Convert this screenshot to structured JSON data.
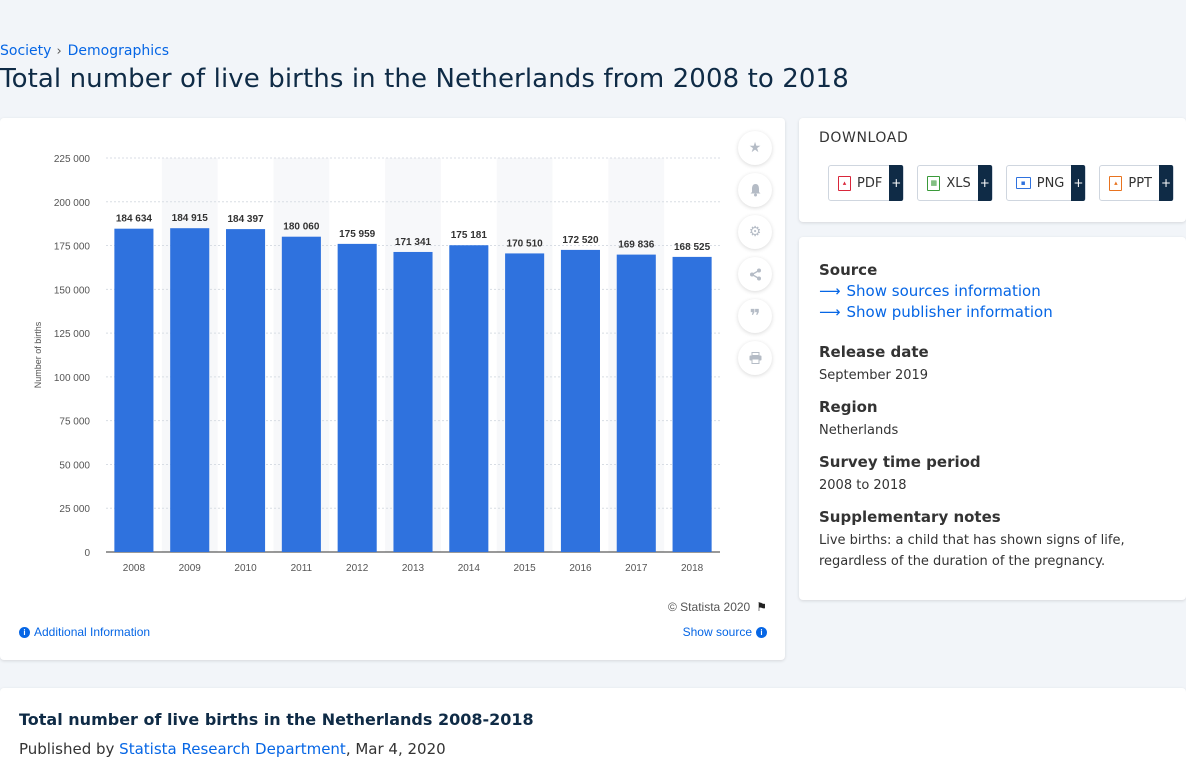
{
  "breadcrumb": {
    "item1": "Society",
    "item2": "Demographics"
  },
  "page_title": "Total number of live births in the Netherlands from 2008 to 2018",
  "chart_data": {
    "type": "bar",
    "categories": [
      "2008",
      "2009",
      "2010",
      "2011",
      "2012",
      "2013",
      "2014",
      "2015",
      "2016",
      "2017",
      "2018"
    ],
    "values": [
      184634,
      184915,
      184397,
      180060,
      175959,
      171341,
      175181,
      170510,
      172520,
      169836,
      168525
    ],
    "value_labels": [
      "184 634",
      "184 915",
      "184 397",
      "180 060",
      "175 959",
      "171 341",
      "175 181",
      "170 510",
      "172 520",
      "169 836",
      "168 525"
    ],
    "ylabel": "Number of births",
    "ylim": [
      0,
      225000
    ],
    "yticks": [
      0,
      25000,
      50000,
      75000,
      100000,
      125000,
      150000,
      175000,
      200000,
      225000
    ],
    "ytick_labels": [
      "0",
      "25 000",
      "50 000",
      "75 000",
      "100 000",
      "125 000",
      "150 000",
      "175 000",
      "200 000",
      "225 000"
    ],
    "bar_color": "#2f72de",
    "grid": true
  },
  "chart_footer": {
    "copyright": "© Statista 2020",
    "additional_info": "Additional Information",
    "show_source": "Show source"
  },
  "download": {
    "heading": "DOWNLOAD",
    "buttons": [
      {
        "label": "PDF",
        "icon": "pdf-file-icon",
        "color": "#d9263a"
      },
      {
        "label": "XLS",
        "icon": "xls-file-icon",
        "color": "#3a9a3a"
      },
      {
        "label": "PNG",
        "icon": "png-file-icon",
        "color": "#2f72de"
      },
      {
        "label": "PPT",
        "icon": "ppt-file-icon",
        "color": "#e8731f"
      }
    ],
    "plus": "+"
  },
  "info": {
    "source_heading": "Source",
    "show_sources": "Show sources information",
    "show_publisher": "Show publisher information",
    "release_heading": "Release date",
    "release_value": "September 2019",
    "region_heading": "Region",
    "region_value": "Netherlands",
    "survey_heading": "Survey time period",
    "survey_value": "2008 to 2018",
    "notes_heading": "Supplementary notes",
    "notes_value": "Live births: a child that has shown signs of life, regardless of the duration of the pregnancy."
  },
  "footer": {
    "title": "Total number of live births in the Netherlands 2008-2018",
    "published_by": "Published by",
    "publisher": "Statista Research Department",
    "date": ", Mar 4, 2020"
  }
}
